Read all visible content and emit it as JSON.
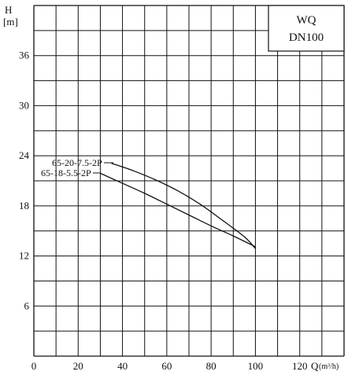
{
  "chart_data": {
    "type": "line",
    "xlabel": "Q",
    "xunit": "(m³/h)",
    "ylabel": "H",
    "yunit": "[m]",
    "xlim": [
      0,
      140
    ],
    "ylim": [
      0,
      42
    ],
    "x_ticks": [
      0,
      20,
      40,
      60,
      80,
      100,
      120
    ],
    "y_ticks": [
      6,
      12,
      18,
      24,
      30,
      36
    ],
    "grid": true,
    "box_title": "WQ",
    "box_subtitle": "DN100",
    "series": [
      {
        "name": "65-20-7.5-2P",
        "x": [
          35,
          45,
          55,
          65,
          75,
          85,
          95,
          100
        ],
        "y": [
          23.1,
          22.2,
          21.1,
          19.8,
          18.2,
          16.3,
          14.3,
          12.9
        ]
      },
      {
        "name": "65-18-5.5-2P",
        "x": [
          30,
          40,
          50,
          60,
          70,
          80,
          90,
          100
        ],
        "y": [
          21.9,
          20.7,
          19.5,
          18.2,
          16.9,
          15.6,
          14.4,
          13.1
        ]
      }
    ]
  }
}
